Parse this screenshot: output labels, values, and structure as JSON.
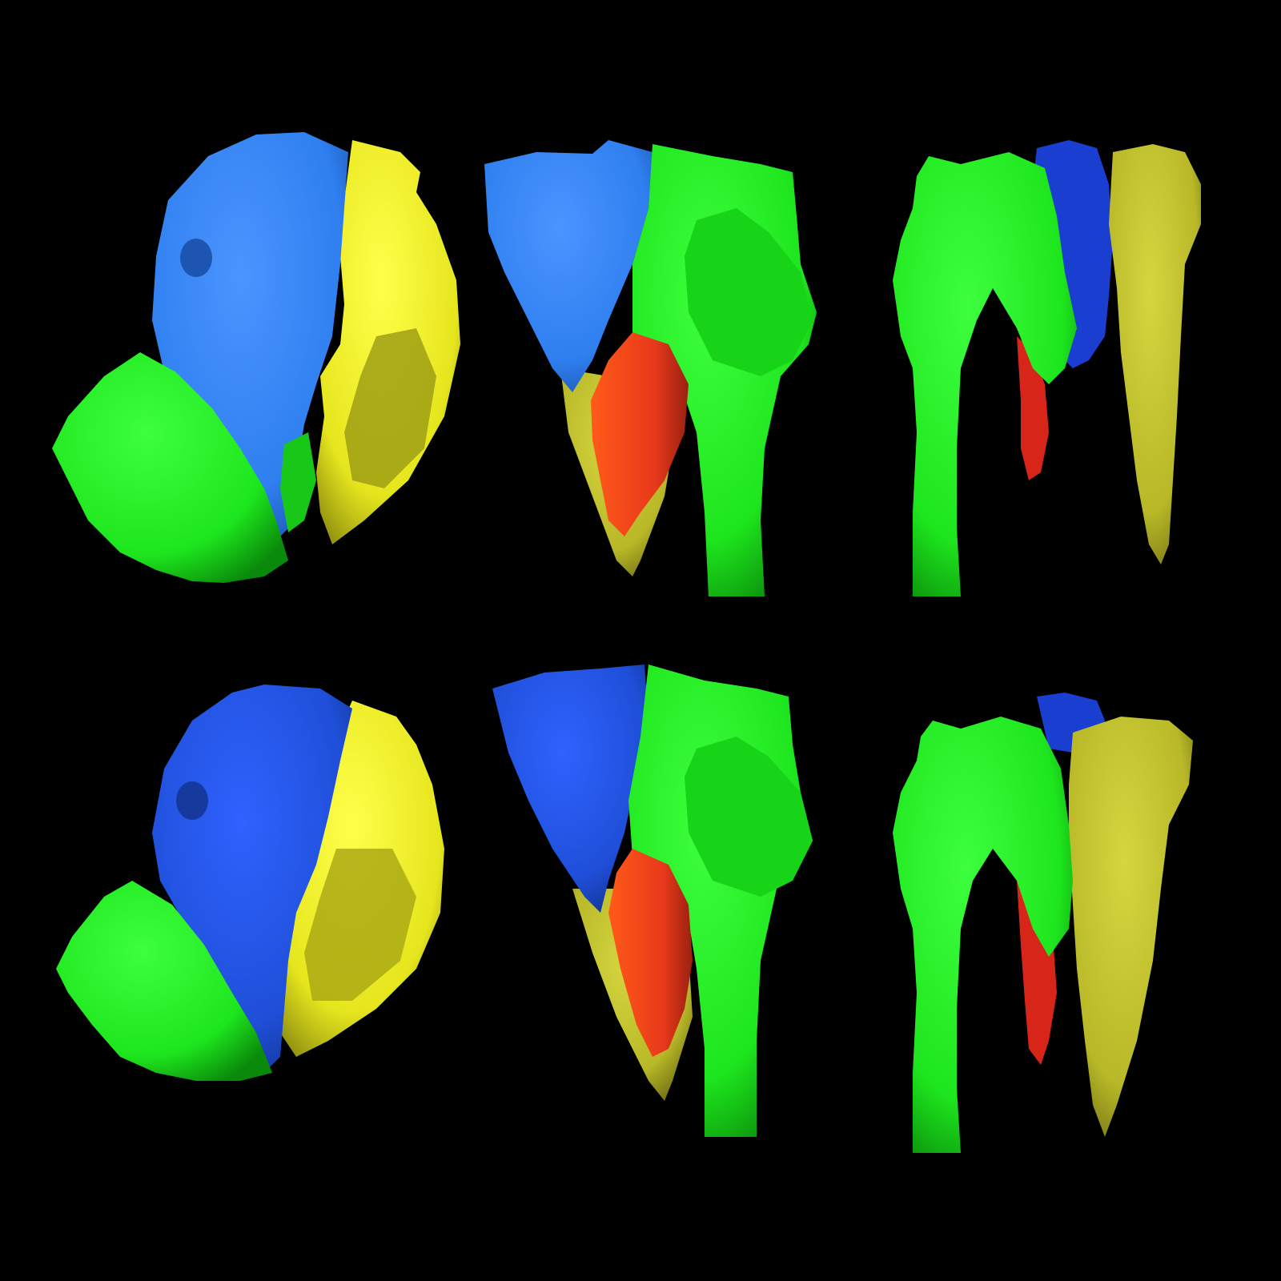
{
  "figure": {
    "background": "#000000",
    "grid": {
      "rows": 2,
      "columns": 3
    },
    "colors": {
      "green": "#1ee61e",
      "blue_light": "#2f7ff0",
      "blue_dark": "#1f4fd8",
      "yellow": "#e6e61e",
      "red": "#e8391a"
    }
  }
}
